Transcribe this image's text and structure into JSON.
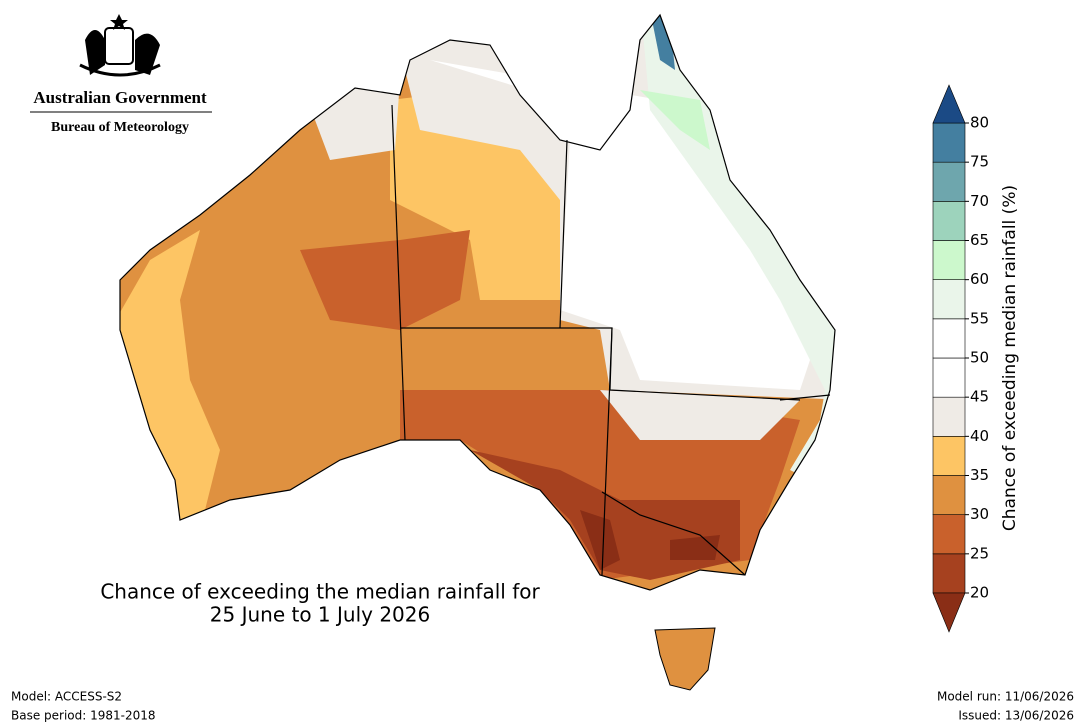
{
  "header": {
    "government": "Australian Government",
    "agency": "Bureau of Meteorology"
  },
  "map": {
    "title": "Chance of exceeding the median rainfall for",
    "subtitle": "25 June to 1 July 2026"
  },
  "colorbar": {
    "label": "Chance of exceeding median rainfall (%)",
    "ticks": [
      20,
      25,
      30,
      35,
      40,
      45,
      50,
      55,
      60,
      65,
      70,
      75,
      80
    ],
    "colors": [
      "#8a2e16",
      "#a6411f",
      "#c9612c",
      "#df9140",
      "#fdc564",
      "#efebe6",
      "#ffffff",
      "#ffffff",
      "#eaf5ea",
      "#ccf8cc",
      "#9dd3bc",
      "#6ea6ad",
      "#447fa0",
      "#1b4a85"
    ]
  },
  "footer": {
    "model": "Model: ACCESS-S2",
    "base_period": "Base period: 1981-2018",
    "model_run": "Model run: 11/06/2026",
    "issued": "Issued: 13/06/2026"
  }
}
